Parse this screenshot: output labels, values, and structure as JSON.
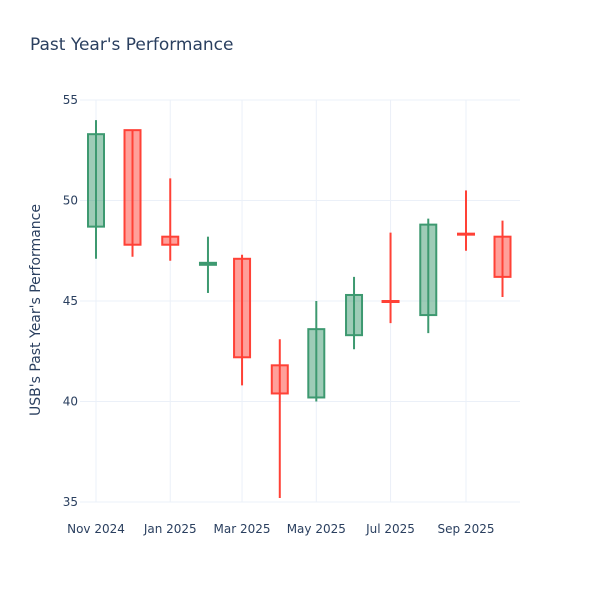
{
  "chart_data": {
    "type": "candlestick",
    "title": "Past Year's Performance",
    "xlabel": "",
    "ylabel": "USB's Past Year's Performance",
    "ylim": [
      34.2,
      55
    ],
    "yticks": [
      35,
      40,
      45,
      50,
      55
    ],
    "xticks": [
      {
        "label": "Nov 2024",
        "day": 0
      },
      {
        "label": "Jan 2025",
        "day": 61
      },
      {
        "label": "Mar 2025",
        "day": 120
      },
      {
        "label": "May 2025",
        "day": 181
      },
      {
        "label": "Jul 2025",
        "day": 242
      },
      {
        "label": "Sep 2025",
        "day": 304
      }
    ],
    "grid": true,
    "increasing_color": "#3D9970",
    "decreasing_color": "#FF4136",
    "candles": [
      {
        "date": "2024-11",
        "day": 0,
        "open": 48.7,
        "high": 54.0,
        "low": 47.1,
        "close": 53.3
      },
      {
        "date": "2024-12",
        "day": 30,
        "open": 53.5,
        "high": 53.5,
        "low": 47.2,
        "close": 47.8
      },
      {
        "date": "2025-01",
        "day": 61,
        "open": 48.2,
        "high": 51.1,
        "low": 47.0,
        "close": 47.8
      },
      {
        "date": "2025-02",
        "day": 92,
        "open": 46.8,
        "high": 48.2,
        "low": 45.4,
        "close": 46.9
      },
      {
        "date": "2025-03",
        "day": 120,
        "open": 47.1,
        "high": 47.3,
        "low": 40.8,
        "close": 42.2
      },
      {
        "date": "2025-04",
        "day": 151,
        "open": 41.8,
        "high": 43.1,
        "low": 35.2,
        "close": 40.4
      },
      {
        "date": "2025-05",
        "day": 181,
        "open": 40.2,
        "high": 45.0,
        "low": 40.0,
        "close": 43.6
      },
      {
        "date": "2025-06",
        "day": 212,
        "open": 43.3,
        "high": 46.2,
        "low": 42.6,
        "close": 45.3
      },
      {
        "date": "2025-07",
        "day": 242,
        "open": 45.0,
        "high": 48.4,
        "low": 43.9,
        "close": 44.95
      },
      {
        "date": "2025-08",
        "day": 273,
        "open": 44.3,
        "high": 49.1,
        "low": 43.4,
        "close": 48.8
      },
      {
        "date": "2025-09",
        "day": 304,
        "open": 48.35,
        "high": 50.5,
        "low": 47.5,
        "close": 48.3
      },
      {
        "date": "2025-10",
        "day": 334,
        "open": 48.2,
        "high": 49.0,
        "low": 45.2,
        "close": 46.2
      }
    ]
  }
}
